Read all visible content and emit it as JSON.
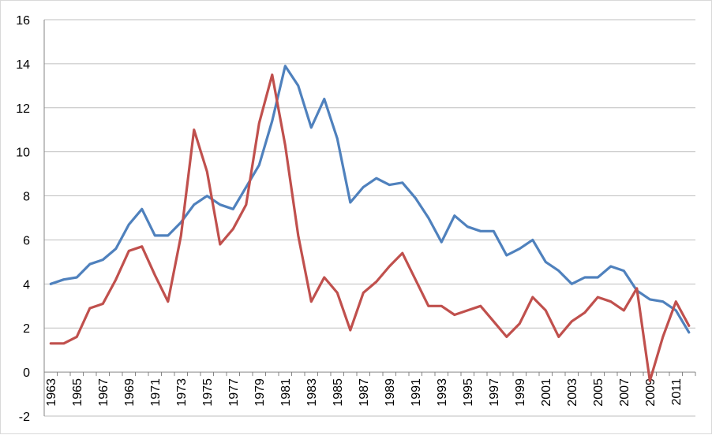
{
  "chart_data": {
    "type": "line",
    "title": "",
    "xlabel": "",
    "ylabel": "",
    "ylim": [
      -2,
      16
    ],
    "yticks": [
      -2,
      0,
      2,
      4,
      6,
      8,
      10,
      12,
      14,
      16
    ],
    "grid": true,
    "legend": "none",
    "x": [
      1963,
      1964,
      1965,
      1966,
      1967,
      1968,
      1969,
      1970,
      1971,
      1972,
      1973,
      1974,
      1975,
      1976,
      1977,
      1978,
      1979,
      1980,
      1981,
      1982,
      1983,
      1984,
      1985,
      1986,
      1987,
      1988,
      1989,
      1990,
      1991,
      1992,
      1993,
      1994,
      1995,
      1996,
      1997,
      1998,
      1999,
      2000,
      2001,
      2002,
      2003,
      2004,
      2005,
      2006,
      2007,
      2008,
      2009,
      2010,
      2011,
      2012
    ],
    "xtick_labels": [
      "1963",
      "1965",
      "1967",
      "1969",
      "1971",
      "1973",
      "1975",
      "1977",
      "1979",
      "1981",
      "1983",
      "1985",
      "1987",
      "1989",
      "1991",
      "1993",
      "1995",
      "1997",
      "1999",
      "2001",
      "2003",
      "2005",
      "2007",
      "2009",
      "2011"
    ],
    "series": [
      {
        "color": "#4F81BD",
        "values": [
          4.0,
          4.2,
          4.3,
          4.9,
          5.1,
          5.6,
          6.7,
          7.4,
          6.2,
          6.2,
          6.8,
          7.6,
          8.0,
          7.6,
          7.4,
          8.4,
          9.4,
          11.4,
          13.9,
          13.0,
          11.1,
          12.4,
          10.6,
          7.7,
          8.4,
          8.8,
          8.5,
          8.6,
          7.9,
          7.0,
          5.9,
          7.1,
          6.6,
          6.4,
          6.4,
          5.3,
          5.6,
          6.0,
          5.0,
          4.6,
          4.0,
          4.3,
          4.3,
          4.8,
          4.6,
          3.7,
          3.3,
          3.2,
          2.8,
          1.8
        ]
      },
      {
        "color": "#C0504D",
        "values": [
          1.3,
          1.3,
          1.6,
          2.9,
          3.1,
          4.2,
          5.5,
          5.7,
          4.4,
          3.2,
          6.2,
          11.0,
          9.1,
          5.8,
          6.5,
          7.6,
          11.3,
          13.5,
          10.3,
          6.2,
          3.2,
          4.3,
          3.6,
          1.9,
          3.6,
          4.1,
          4.8,
          5.4,
          4.2,
          3.0,
          3.0,
          2.6,
          2.8,
          3.0,
          2.3,
          1.6,
          2.2,
          3.4,
          2.8,
          1.6,
          2.3,
          2.7,
          3.4,
          3.2,
          2.8,
          3.8,
          -0.4,
          1.6,
          3.2,
          2.1
        ]
      }
    ]
  }
}
